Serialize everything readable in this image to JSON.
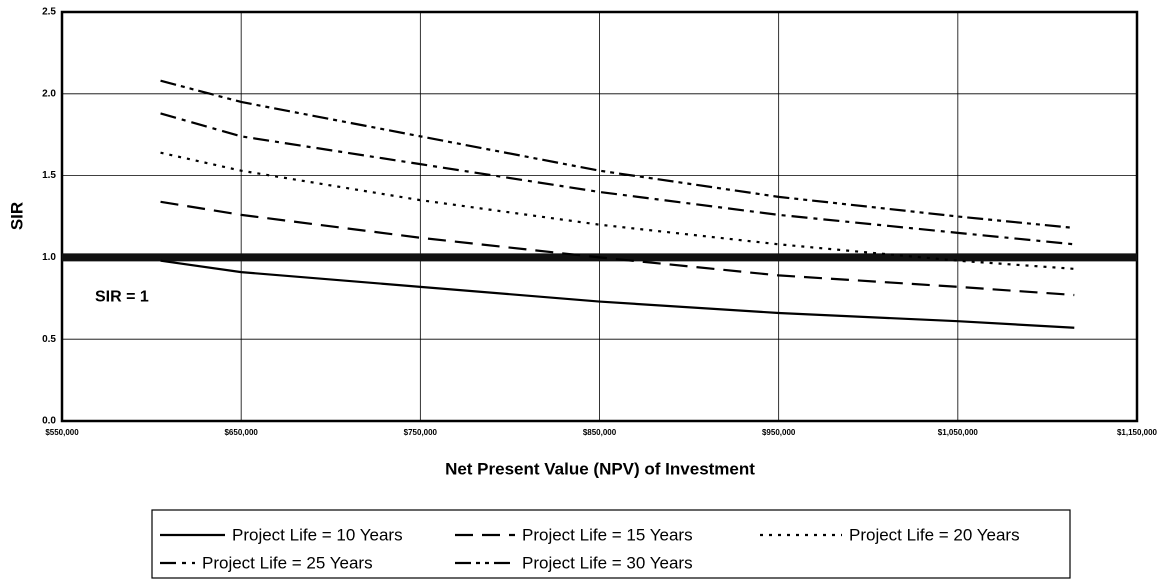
{
  "chart_data": {
    "type": "line",
    "x_label": "Net Present Value (NPV) of Investment",
    "y_label": "SIR",
    "x": [
      605000,
      650000,
      750000,
      850000,
      950000,
      1050000,
      1115000
    ],
    "series": [
      {
        "name": "Project Life = 10 Years",
        "color": "#000000",
        "dash": "solid",
        "values": [
          0.98,
          0.91,
          0.82,
          0.73,
          0.66,
          0.61,
          0.57
        ]
      },
      {
        "name": "Project Life = 15 Years",
        "color": "#000000",
        "dash": "long-dash",
        "values": [
          1.34,
          1.26,
          1.12,
          1.0,
          0.89,
          0.82,
          0.77
        ]
      },
      {
        "name": "Project Life = 20 Years",
        "color": "#000000",
        "dash": "dot",
        "values": [
          1.64,
          1.53,
          1.35,
          1.2,
          1.08,
          0.98,
          0.93
        ]
      },
      {
        "name": "Project Life = 25 Years",
        "color": "#000000",
        "dash": "dash-dot",
        "values": [
          1.88,
          1.74,
          1.57,
          1.4,
          1.26,
          1.15,
          1.08
        ]
      },
      {
        "name": "Project Life = 30 Years",
        "color": "#000000",
        "dash": "dash-dot-dot",
        "values": [
          2.08,
          1.95,
          1.74,
          1.53,
          1.37,
          1.25,
          1.18
        ]
      }
    ],
    "reference_line": {
      "value": 1,
      "label": "SIR = 1"
    },
    "xlim": [
      550000,
      1150000
    ],
    "xticks": [
      {
        "value": 550000,
        "label": "$550,000"
      },
      {
        "value": 650000,
        "label": "$650,000"
      },
      {
        "value": 750000,
        "label": "$750,000"
      },
      {
        "value": 850000,
        "label": "$850,000"
      },
      {
        "value": 950000,
        "label": "$950,000"
      },
      {
        "value": 1050000,
        "label": "$1,050,000"
      },
      {
        "value": 1150000,
        "label": "$1,150,000"
      }
    ],
    "ylim": [
      0,
      2.5
    ],
    "yticks": [
      {
        "value": 0,
        "label": "0.0"
      },
      {
        "value": 0.5,
        "label": "0.5"
      },
      {
        "value": 1,
        "label": "1.0"
      },
      {
        "value": 1.5,
        "label": "1.5"
      },
      {
        "value": 2,
        "label": "2.0"
      },
      {
        "value": 2.5,
        "label": "2.5"
      }
    ],
    "grid": true,
    "legend": "bottom"
  }
}
